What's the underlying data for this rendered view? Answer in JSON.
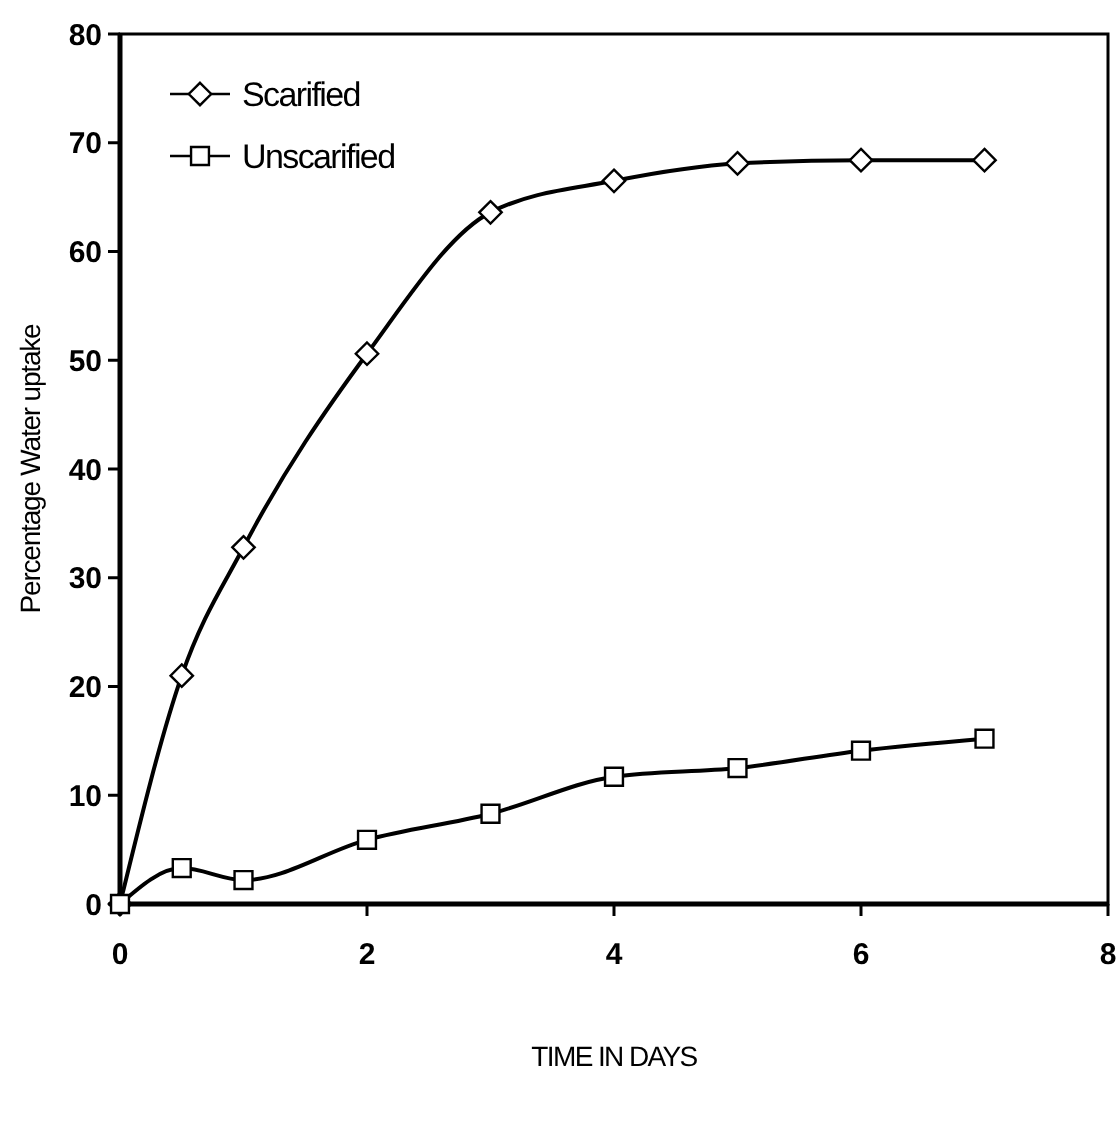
{
  "chart_data": {
    "type": "line",
    "xlabel": "TIME IN DAYS",
    "ylabel": "Percentage Water uptake",
    "xlim": [
      0,
      8
    ],
    "xticks": [
      0,
      2,
      4,
      6,
      8
    ],
    "ylim": [
      0,
      80
    ],
    "yticks": [
      0,
      10,
      20,
      30,
      40,
      50,
      60,
      70,
      80
    ],
    "grid": false,
    "legend": "top left",
    "line_style": "solid",
    "series": [
      {
        "name": "Scarified",
        "color": "#000000",
        "marker": "diamond",
        "x": [
          0,
          0.5,
          1,
          2,
          3,
          4,
          5,
          6,
          7
        ],
        "values": [
          0,
          21,
          32.8,
          50.6,
          63.6,
          66.5,
          68.1,
          68.4,
          68.4
        ]
      },
      {
        "name": "Unscarified",
        "color": "#000000",
        "marker": "square",
        "x": [
          0,
          0.5,
          1,
          2,
          3,
          4,
          5,
          6,
          7
        ],
        "values": [
          0,
          3.3,
          2.2,
          5.9,
          8.3,
          11.7,
          12.5,
          14.1,
          15.2
        ]
      }
    ]
  }
}
